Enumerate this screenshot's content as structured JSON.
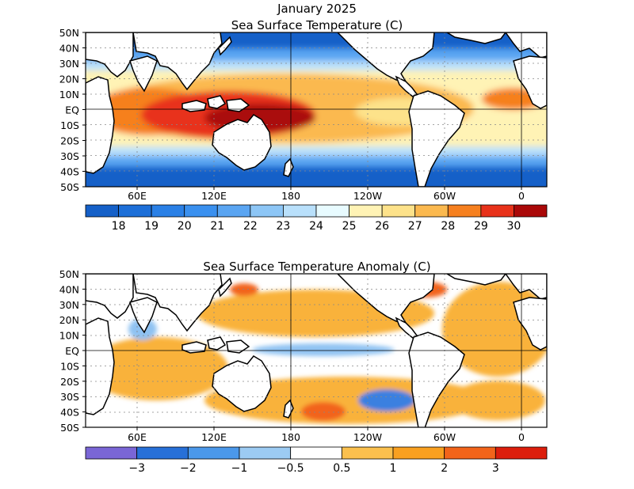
{
  "figure": {
    "title_line1": "January 2025",
    "title_line2": "Sea Surface Temperature (C)",
    "anomaly_title": "Sea Surface Temperature Anomaly (C)"
  },
  "lat_labels": [
    "50N",
    "40N",
    "30N",
    "20N",
    "10N",
    "EQ",
    "10S",
    "20S",
    "30S",
    "40S",
    "50S"
  ],
  "lon_labels": [
    "60E",
    "120E",
    "180",
    "120W",
    "60W",
    "0"
  ],
  "sst_colorbar": {
    "labels": [
      "18",
      "19",
      "20",
      "21",
      "22",
      "23",
      "24",
      "25",
      "26",
      "27",
      "28",
      "29",
      "30"
    ],
    "colors": [
      "#1560c8",
      "#1d6fd8",
      "#2a80e6",
      "#3a90ef",
      "#5aa5f2",
      "#8dc6f6",
      "#b9e0fb",
      "#e8fbff",
      "#fff3b5",
      "#fde28a",
      "#fbb94f",
      "#f6801f",
      "#e8321a",
      "#aa0808"
    ]
  },
  "anom_colorbar": {
    "labels": [
      "−3",
      "−2",
      "−1",
      "−0.5",
      "0.5",
      "1",
      "2",
      "3"
    ],
    "colors": [
      "#7a66d6",
      "#2770d8",
      "#4b98ea",
      "#9ccbf3",
      "#ffffff",
      "#fbc04e",
      "#f9a020",
      "#f2641a",
      "#dc1e0c"
    ]
  },
  "colors": {
    "land": "#ffffff",
    "coast": "#000000",
    "grid": "#888888",
    "sst_cold": "#1560c8",
    "sst_cool": "#5aa5f2",
    "sst_mid": "#fff3b5",
    "sst_warm": "#fbb94f",
    "sst_hot": "#e8321a",
    "sst_hottest": "#aa0808",
    "anom_pos": "#f9b23a",
    "anom_pos_strong": "#f2641a",
    "anom_neg": "#8fc2f2",
    "anom_neg_strong": "#3a80e0"
  }
}
